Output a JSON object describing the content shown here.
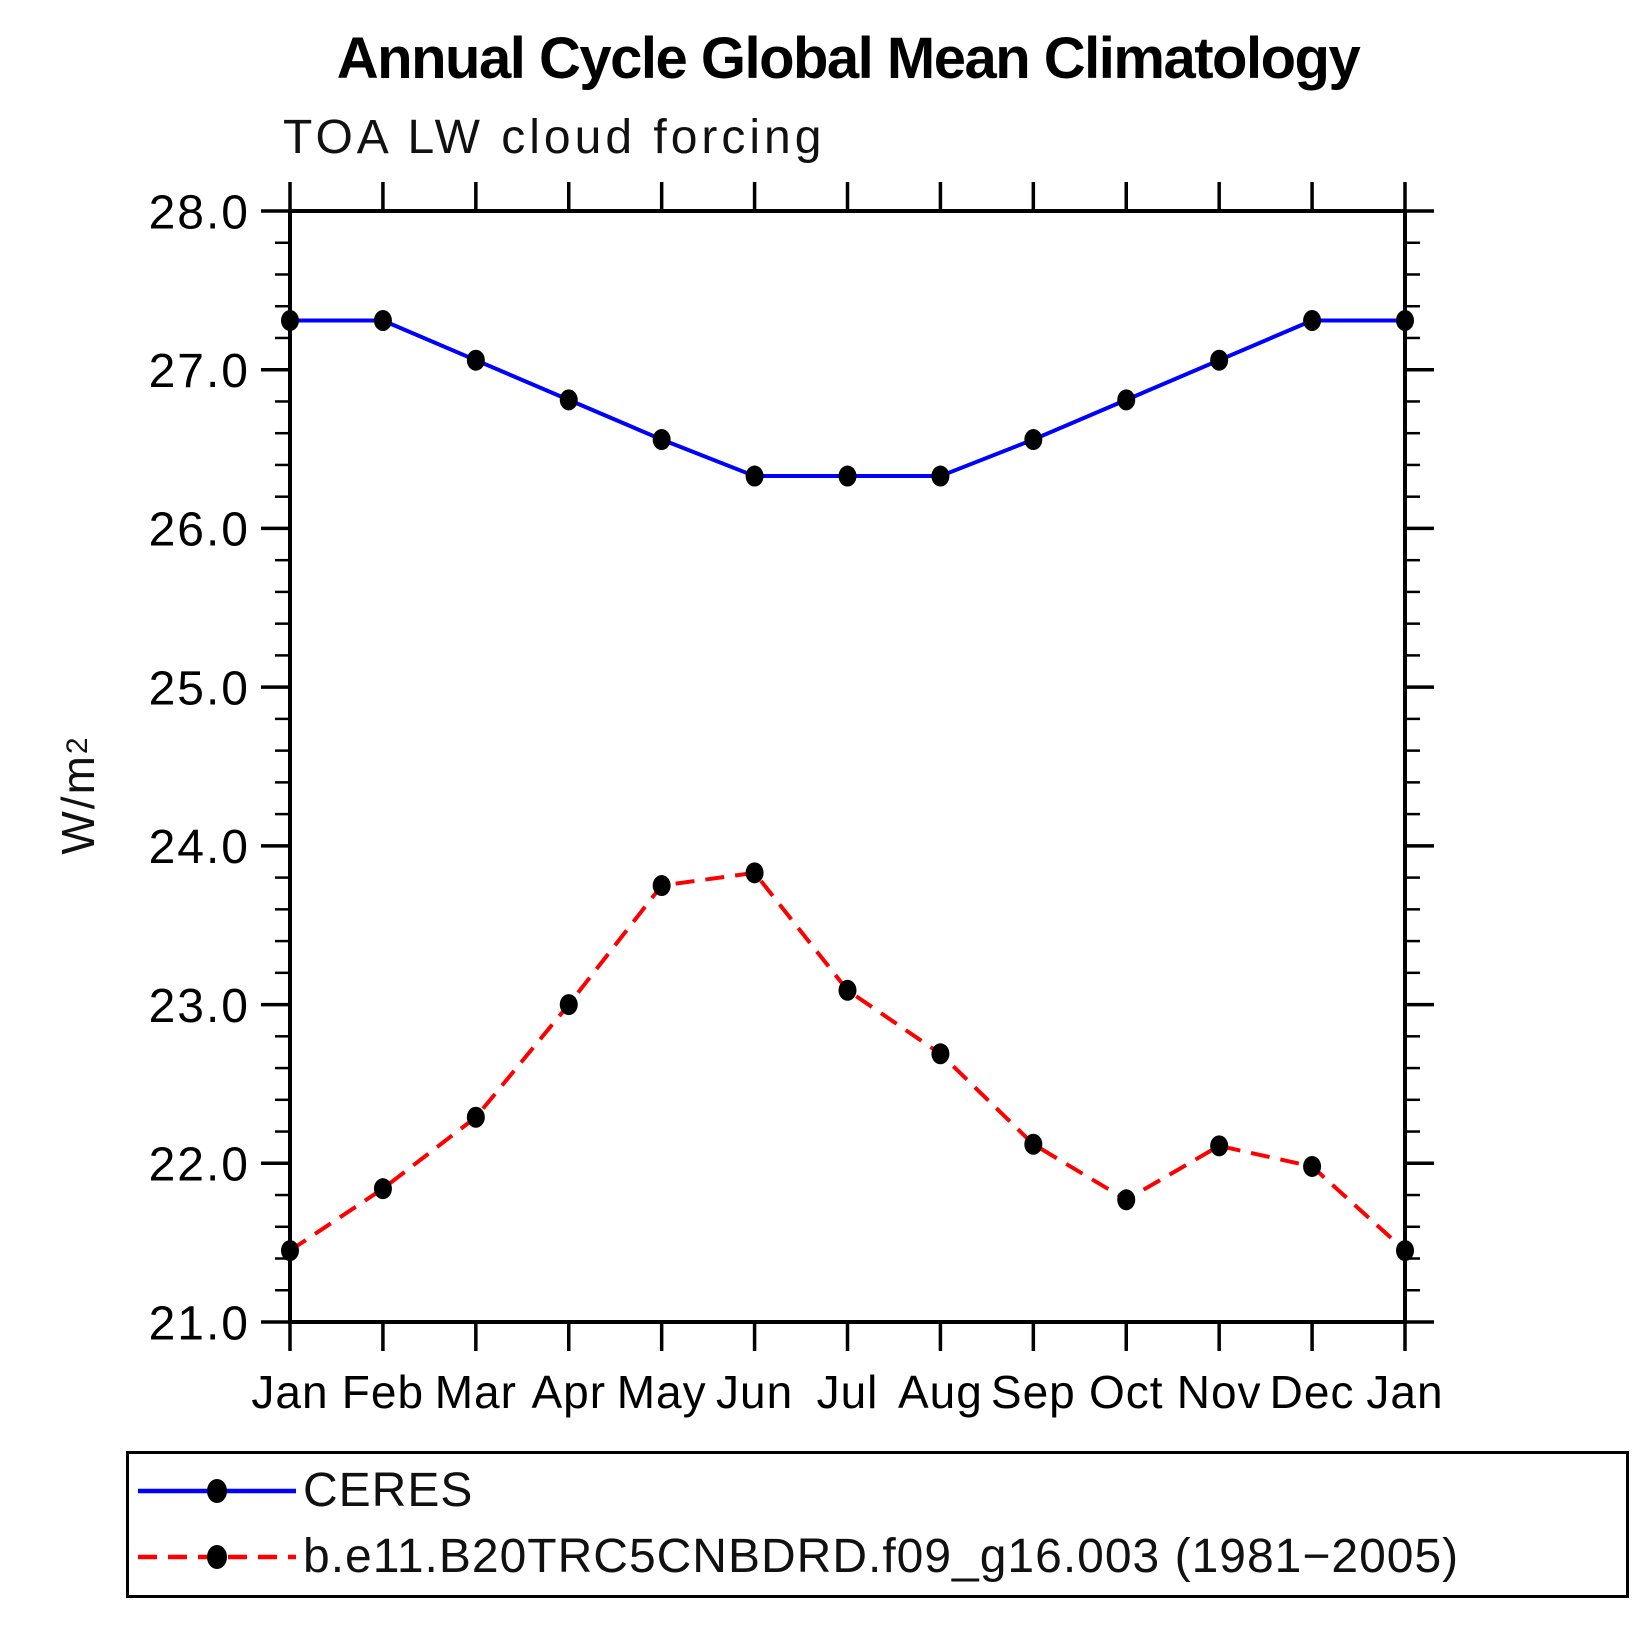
{
  "title": "Annual Cycle Global Mean Climatology",
  "subtitle": "TOA LW cloud forcing",
  "ylabel": {
    "base": "W/m",
    "sup": "2"
  },
  "chart_data": {
    "type": "line",
    "title": "Annual Cycle Global Mean Climatology",
    "subtitle": "TOA LW cloud forcing",
    "ylabel": "W/m^2",
    "xlabel": "",
    "x_tick_labels": [
      "Jan",
      "Feb",
      "Mar",
      "Apr",
      "May",
      "Jun",
      "Jul",
      "Aug",
      "Sep",
      "Oct",
      "Nov",
      "Dec",
      "Jan"
    ],
    "ylim": [
      21.0,
      28.0
    ],
    "ytick_major_interval": 1.0,
    "ytick_minor_interval": 0.2,
    "ytick_labels": [
      "21.0",
      "22.0",
      "23.0",
      "24.0",
      "25.0",
      "26.0",
      "27.0",
      "28.0"
    ],
    "grid": false,
    "frame": "box-with-outward-ticks-all-sides",
    "legend_position": "bottom-left-boxed",
    "series": [
      {
        "name": "CERES",
        "line_color": "#0000ff",
        "line_style": "solid",
        "marker": "filled-circle",
        "marker_color": "#000000",
        "values": [
          27.31,
          27.31,
          27.06,
          26.81,
          26.56,
          26.33,
          26.33,
          26.33,
          26.56,
          26.81,
          27.06,
          27.31,
          27.31
        ]
      },
      {
        "name": "b.e11.B20TRC5CNBDRD.f09_g16.003 (1981−2005)",
        "line_color": "#ff0000",
        "line_style": "dashed",
        "marker": "filled-circle",
        "marker_color": "#000000",
        "values": [
          21.45,
          21.84,
          22.29,
          23.0,
          23.75,
          23.83,
          23.09,
          22.69,
          22.12,
          21.77,
          22.11,
          21.98,
          21.45
        ]
      }
    ]
  },
  "colors": {
    "background": "#ffffff",
    "axis": "#000000",
    "text": "#000000",
    "ceres_blue": "#0000ff",
    "model_red": "#ff0000"
  }
}
